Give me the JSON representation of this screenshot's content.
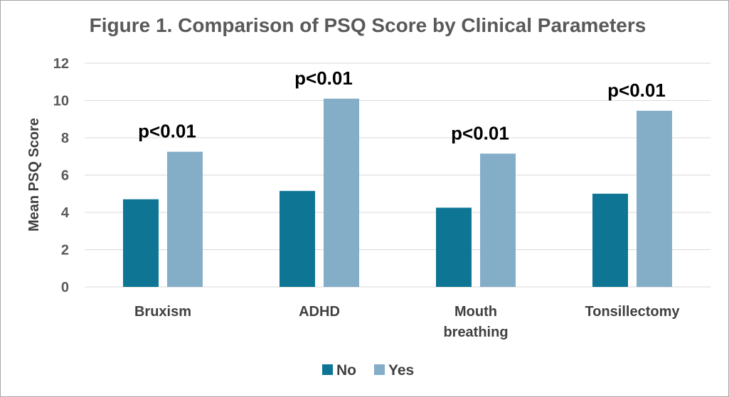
{
  "chart_data": {
    "type": "bar",
    "title": "Figure 1. Comparison of PSQ Score by Clinical Parameters",
    "ylabel": "Mean  PSQ Score",
    "xlabel": "",
    "ylim": [
      0,
      12
    ],
    "yticks": [
      0,
      2,
      4,
      6,
      8,
      10,
      12
    ],
    "grid": true,
    "legend_position": "bottom",
    "categories": [
      [
        "Bruxism"
      ],
      [
        "ADHD"
      ],
      [
        "Mouth",
        "breathing"
      ],
      [
        "Tonsillectomy"
      ]
    ],
    "series": [
      {
        "name": "No",
        "color": "#0e7595",
        "values": [
          4.7,
          5.15,
          4.25,
          5.0
        ]
      },
      {
        "name": "Yes",
        "color": "#84adc7",
        "values": [
          7.25,
          10.1,
          7.15,
          9.45
        ]
      }
    ],
    "annotations": [
      "p<0.01",
      "p<0.01",
      "p<0.01",
      "p<0.01"
    ]
  }
}
